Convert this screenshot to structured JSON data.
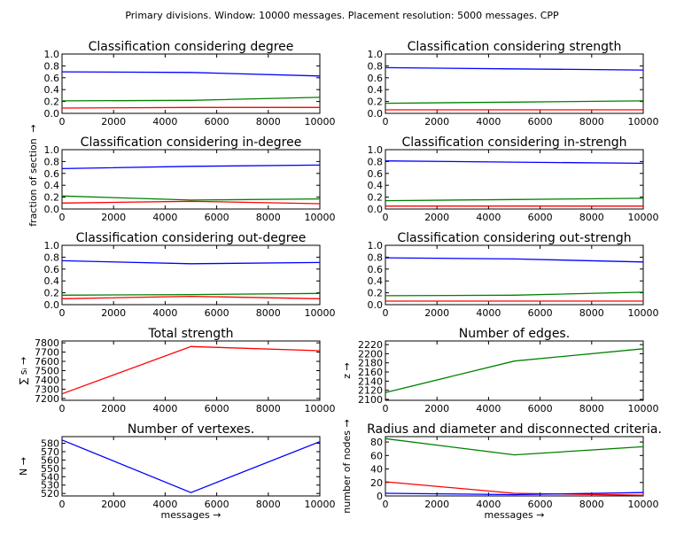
{
  "suptitle": "Primary divisions. Window: 10000 messages. Placement resolution: 5000 messages. CPP",
  "shared_ylabel": "fraction of section",
  "arrow": "→",
  "colors": {
    "blue": "#0000ff",
    "green": "#008000",
    "red": "#ff0000"
  },
  "chart_data": [
    {
      "id": "degree",
      "type": "line",
      "title": "Classification considering degree",
      "xlabel": "",
      "ylabel": "",
      "xlim": [
        0,
        10000
      ],
      "ylim": [
        0,
        1.0
      ],
      "xticks": [
        0,
        2000,
        4000,
        6000,
        8000,
        10000
      ],
      "yticks": [
        0.0,
        0.2,
        0.4,
        0.6,
        0.8,
        1.0
      ],
      "x": [
        0,
        5000,
        10000
      ],
      "series": [
        {
          "color": "blue",
          "values": [
            0.7,
            0.69,
            0.63
          ]
        },
        {
          "color": "green",
          "values": [
            0.21,
            0.22,
            0.27
          ]
        },
        {
          "color": "red",
          "values": [
            0.09,
            0.1,
            0.1
          ]
        }
      ]
    },
    {
      "id": "strength",
      "type": "line",
      "title": "Classification considering strength",
      "xlabel": "",
      "ylabel": "",
      "xlim": [
        0,
        10000
      ],
      "ylim": [
        0,
        1.0
      ],
      "xticks": [
        0,
        2000,
        4000,
        6000,
        8000,
        10000
      ],
      "yticks": [
        0.0,
        0.2,
        0.4,
        0.6,
        0.8,
        1.0
      ],
      "x": [
        0,
        5000,
        10000
      ],
      "series": [
        {
          "color": "blue",
          "values": [
            0.77,
            0.75,
            0.73
          ]
        },
        {
          "color": "green",
          "values": [
            0.17,
            0.19,
            0.21
          ]
        },
        {
          "color": "red",
          "values": [
            0.06,
            0.06,
            0.06
          ]
        }
      ]
    },
    {
      "id": "in-degree",
      "type": "line",
      "title": "Classification considering in-degree",
      "xlabel": "",
      "ylabel": "",
      "xlim": [
        0,
        10000
      ],
      "ylim": [
        0,
        1.0
      ],
      "xticks": [
        0,
        2000,
        4000,
        6000,
        8000,
        10000
      ],
      "yticks": [
        0.0,
        0.2,
        0.4,
        0.6,
        0.8,
        1.0
      ],
      "x": [
        0,
        5000,
        10000
      ],
      "series": [
        {
          "color": "blue",
          "values": [
            0.68,
            0.72,
            0.74
          ]
        },
        {
          "color": "green",
          "values": [
            0.22,
            0.15,
            0.17
          ]
        },
        {
          "color": "red",
          "values": [
            0.1,
            0.13,
            0.09
          ]
        }
      ]
    },
    {
      "id": "in-strength",
      "type": "line",
      "title": "Classification considering in-strengh",
      "xlabel": "",
      "ylabel": "",
      "xlim": [
        0,
        10000
      ],
      "ylim": [
        0,
        1.0
      ],
      "xticks": [
        0,
        2000,
        4000,
        6000,
        8000,
        10000
      ],
      "yticks": [
        0.0,
        0.2,
        0.4,
        0.6,
        0.8,
        1.0
      ],
      "x": [
        0,
        5000,
        10000
      ],
      "series": [
        {
          "color": "blue",
          "values": [
            0.81,
            0.79,
            0.77
          ]
        },
        {
          "color": "green",
          "values": [
            0.14,
            0.16,
            0.18
          ]
        },
        {
          "color": "red",
          "values": [
            0.05,
            0.05,
            0.05
          ]
        }
      ]
    },
    {
      "id": "out-degree",
      "type": "line",
      "title": "Classification considering out-degree",
      "xlabel": "",
      "ylabel": "",
      "xlim": [
        0,
        10000
      ],
      "ylim": [
        0,
        1.0
      ],
      "xticks": [
        0,
        2000,
        4000,
        6000,
        8000,
        10000
      ],
      "yticks": [
        0.0,
        0.2,
        0.4,
        0.6,
        0.8,
        1.0
      ],
      "x": [
        0,
        5000,
        10000
      ],
      "series": [
        {
          "color": "blue",
          "values": [
            0.74,
            0.69,
            0.71
          ]
        },
        {
          "color": "green",
          "values": [
            0.16,
            0.17,
            0.19
          ]
        },
        {
          "color": "red",
          "values": [
            0.1,
            0.14,
            0.1
          ]
        }
      ]
    },
    {
      "id": "out-strength",
      "type": "line",
      "title": "Classification considering out-strengh",
      "xlabel": "",
      "ylabel": "",
      "xlim": [
        0,
        10000
      ],
      "ylim": [
        0,
        1.0
      ],
      "xticks": [
        0,
        2000,
        4000,
        6000,
        8000,
        10000
      ],
      "yticks": [
        0.0,
        0.2,
        0.4,
        0.6,
        0.8,
        1.0
      ],
      "x": [
        0,
        5000,
        10000
      ],
      "series": [
        {
          "color": "blue",
          "values": [
            0.79,
            0.77,
            0.72
          ]
        },
        {
          "color": "green",
          "values": [
            0.15,
            0.16,
            0.21
          ]
        },
        {
          "color": "red",
          "values": [
            0.06,
            0.06,
            0.06
          ]
        }
      ]
    },
    {
      "id": "total-strength",
      "type": "line",
      "title": "Total strength",
      "xlabel": "",
      "ylabel": "∑ sᵢ",
      "xlim": [
        0,
        10000
      ],
      "ylim": [
        7180,
        7820
      ],
      "xticks": [
        0,
        2000,
        4000,
        6000,
        8000,
        10000
      ],
      "yticks": [
        7200,
        7300,
        7400,
        7500,
        7600,
        7700,
        7800
      ],
      "x": [
        0,
        5000,
        10000
      ],
      "series": [
        {
          "color": "red",
          "values": [
            7250,
            7760,
            7715
          ]
        }
      ]
    },
    {
      "id": "edges",
      "type": "line",
      "title": "Number of edges.",
      "xlabel": "",
      "ylabel": "z",
      "xlim": [
        0,
        10000
      ],
      "ylim": [
        2098,
        2228
      ],
      "xticks": [
        0,
        2000,
        4000,
        6000,
        8000,
        10000
      ],
      "yticks": [
        2100,
        2120,
        2140,
        2160,
        2180,
        2200,
        2220
      ],
      "x": [
        0,
        5000,
        10000
      ],
      "series": [
        {
          "color": "green",
          "values": [
            2115,
            2184,
            2211
          ]
        }
      ]
    },
    {
      "id": "vertexes",
      "type": "line",
      "title": "Number of vertexes.",
      "xlabel": "messages",
      "ylabel": "N",
      "xlim": [
        0,
        10000
      ],
      "ylim": [
        517,
        588
      ],
      "xticks": [
        0,
        2000,
        4000,
        6000,
        8000,
        10000
      ],
      "yticks": [
        520,
        530,
        540,
        550,
        560,
        570,
        580
      ],
      "x": [
        0,
        5000,
        10000
      ],
      "series": [
        {
          "color": "blue",
          "values": [
            584,
            521,
            582
          ]
        }
      ]
    },
    {
      "id": "radius",
      "type": "line",
      "title": "Radius and diameter and disconnected criteria.",
      "xlabel": "messages",
      "ylabel": "number of nodes",
      "xlim": [
        0,
        10000
      ],
      "ylim": [
        0,
        88
      ],
      "xticks": [
        0,
        2000,
        4000,
        6000,
        8000,
        10000
      ],
      "yticks": [
        0,
        20,
        40,
        60,
        80
      ],
      "x": [
        0,
        5000,
        10000
      ],
      "series": [
        {
          "color": "green",
          "values": [
            85,
            61,
            73
          ]
        },
        {
          "color": "red",
          "values": [
            21,
            4,
            1
          ]
        },
        {
          "color": "blue",
          "values": [
            4,
            2,
            5
          ]
        }
      ]
    }
  ]
}
